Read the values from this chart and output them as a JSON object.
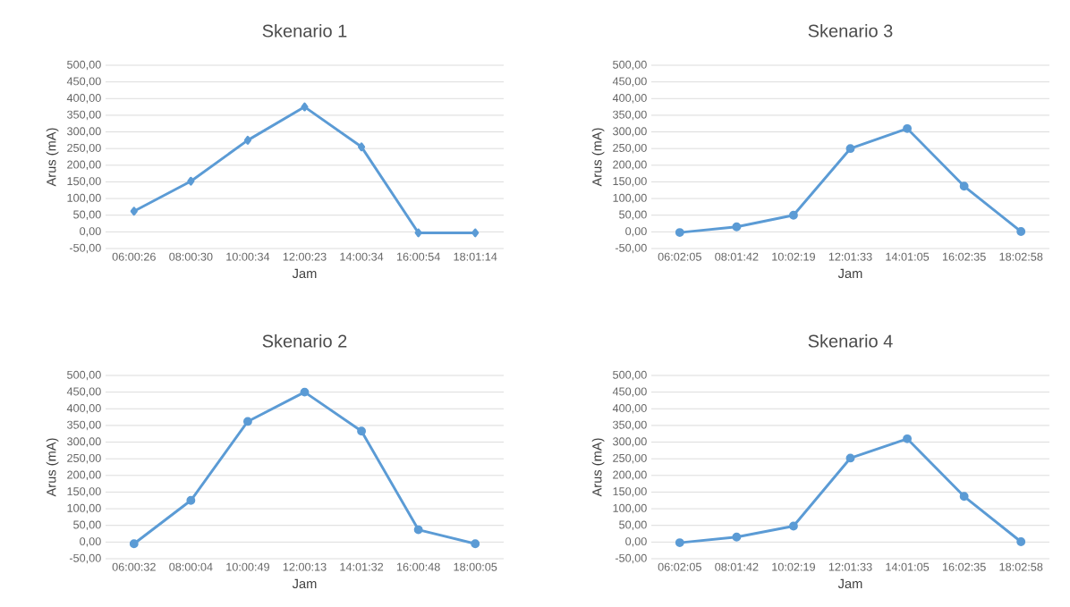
{
  "chart_data": [
    {
      "type": "line",
      "title": "Skenario 1",
      "xlabel": "Jam",
      "ylabel": "Arus (mA)",
      "categories": [
        "06:00:26",
        "08:00:30",
        "10:00:34",
        "12:00:23",
        "14:00:34",
        "16:00:54",
        "18:01:14"
      ],
      "values": [
        62,
        152,
        275,
        375,
        255,
        -3,
        -3
      ],
      "color": "#5b9bd5",
      "marker": "diamond",
      "grid": "y",
      "ylim": [
        -50,
        500
      ],
      "yticks": [
        {
          "value": -50,
          "label": "-50,00"
        },
        {
          "value": 0,
          "label": "0,00"
        },
        {
          "value": 50,
          "label": "50,00"
        },
        {
          "value": 100,
          "label": "100,00"
        },
        {
          "value": 150,
          "label": "150,00"
        },
        {
          "value": 200,
          "label": "200,00"
        },
        {
          "value": 250,
          "label": "250,00"
        },
        {
          "value": 300,
          "label": "300,00"
        },
        {
          "value": 350,
          "label": "350,00"
        },
        {
          "value": 400,
          "label": "400,00"
        },
        {
          "value": 450,
          "label": "450,00"
        },
        {
          "value": 500,
          "label": "500,00"
        }
      ]
    },
    {
      "type": "line",
      "title": "Skenario 3",
      "xlabel": "Jam",
      "ylabel": "Arus (mA)",
      "categories": [
        "06:02:05",
        "08:01:42",
        "10:02:19",
        "12:01:33",
        "14:01:05",
        "16:02:35",
        "18:02:58"
      ],
      "values": [
        -2,
        15,
        50,
        250,
        310,
        137,
        1
      ],
      "color": "#5b9bd5",
      "marker": "circle",
      "grid": "y",
      "ylim": [
        -50,
        500
      ],
      "yticks": [
        {
          "value": -50,
          "label": "-50,00"
        },
        {
          "value": 0,
          "label": "0,00"
        },
        {
          "value": 50,
          "label": "50,00"
        },
        {
          "value": 100,
          "label": "100,00"
        },
        {
          "value": 150,
          "label": "150,00"
        },
        {
          "value": 200,
          "label": "200,00"
        },
        {
          "value": 250,
          "label": "250,00"
        },
        {
          "value": 300,
          "label": "300,00"
        },
        {
          "value": 350,
          "label": "350,00"
        },
        {
          "value": 400,
          "label": "400,00"
        },
        {
          "value": 450,
          "label": "450,00"
        },
        {
          "value": 500,
          "label": "500,00"
        }
      ]
    },
    {
      "type": "line",
      "title": "Skenario 2",
      "xlabel": "Jam",
      "ylabel": "Arus (mA)",
      "categories": [
        "06:00:32",
        "08:00:04",
        "10:00:49",
        "12:00:13",
        "14:01:32",
        "16:00:48",
        "18:00:05"
      ],
      "values": [
        -5,
        125,
        362,
        450,
        333,
        37,
        -5
      ],
      "color": "#5b9bd5",
      "marker": "circle",
      "grid": "y",
      "ylim": [
        -50,
        500
      ],
      "yticks": [
        {
          "value": -50,
          "label": "-50,00"
        },
        {
          "value": 0,
          "label": "0,00"
        },
        {
          "value": 50,
          "label": "50,00"
        },
        {
          "value": 100,
          "label": "100,00"
        },
        {
          "value": 150,
          "label": "150,00"
        },
        {
          "value": 200,
          "label": "200,00"
        },
        {
          "value": 250,
          "label": "250,00"
        },
        {
          "value": 300,
          "label": "300,00"
        },
        {
          "value": 350,
          "label": "350,00"
        },
        {
          "value": 400,
          "label": "400,00"
        },
        {
          "value": 450,
          "label": "450,00"
        },
        {
          "value": 500,
          "label": "500,00"
        }
      ]
    },
    {
      "type": "line",
      "title": "Skenario 4",
      "xlabel": "Jam",
      "ylabel": "Arus (mA)",
      "categories": [
        "06:02:05",
        "08:01:42",
        "10:02:19",
        "12:01:33",
        "14:01:05",
        "16:02:35",
        "18:02:58"
      ],
      "values": [
        -2,
        15,
        48,
        252,
        310,
        137,
        1
      ],
      "color": "#5b9bd5",
      "marker": "circle",
      "grid": "y",
      "ylim": [
        -50,
        500
      ],
      "yticks": [
        {
          "value": -50,
          "label": "-50,00"
        },
        {
          "value": 0,
          "label": "0,00"
        },
        {
          "value": 50,
          "label": "50,00"
        },
        {
          "value": 100,
          "label": "100,00"
        },
        {
          "value": 150,
          "label": "150,00"
        },
        {
          "value": 200,
          "label": "200,00"
        },
        {
          "value": 250,
          "label": "250,00"
        },
        {
          "value": 300,
          "label": "300,00"
        },
        {
          "value": 350,
          "label": "350,00"
        },
        {
          "value": 400,
          "label": "400,00"
        },
        {
          "value": 450,
          "label": "450,00"
        },
        {
          "value": 500,
          "label": "500,00"
        }
      ]
    }
  ]
}
